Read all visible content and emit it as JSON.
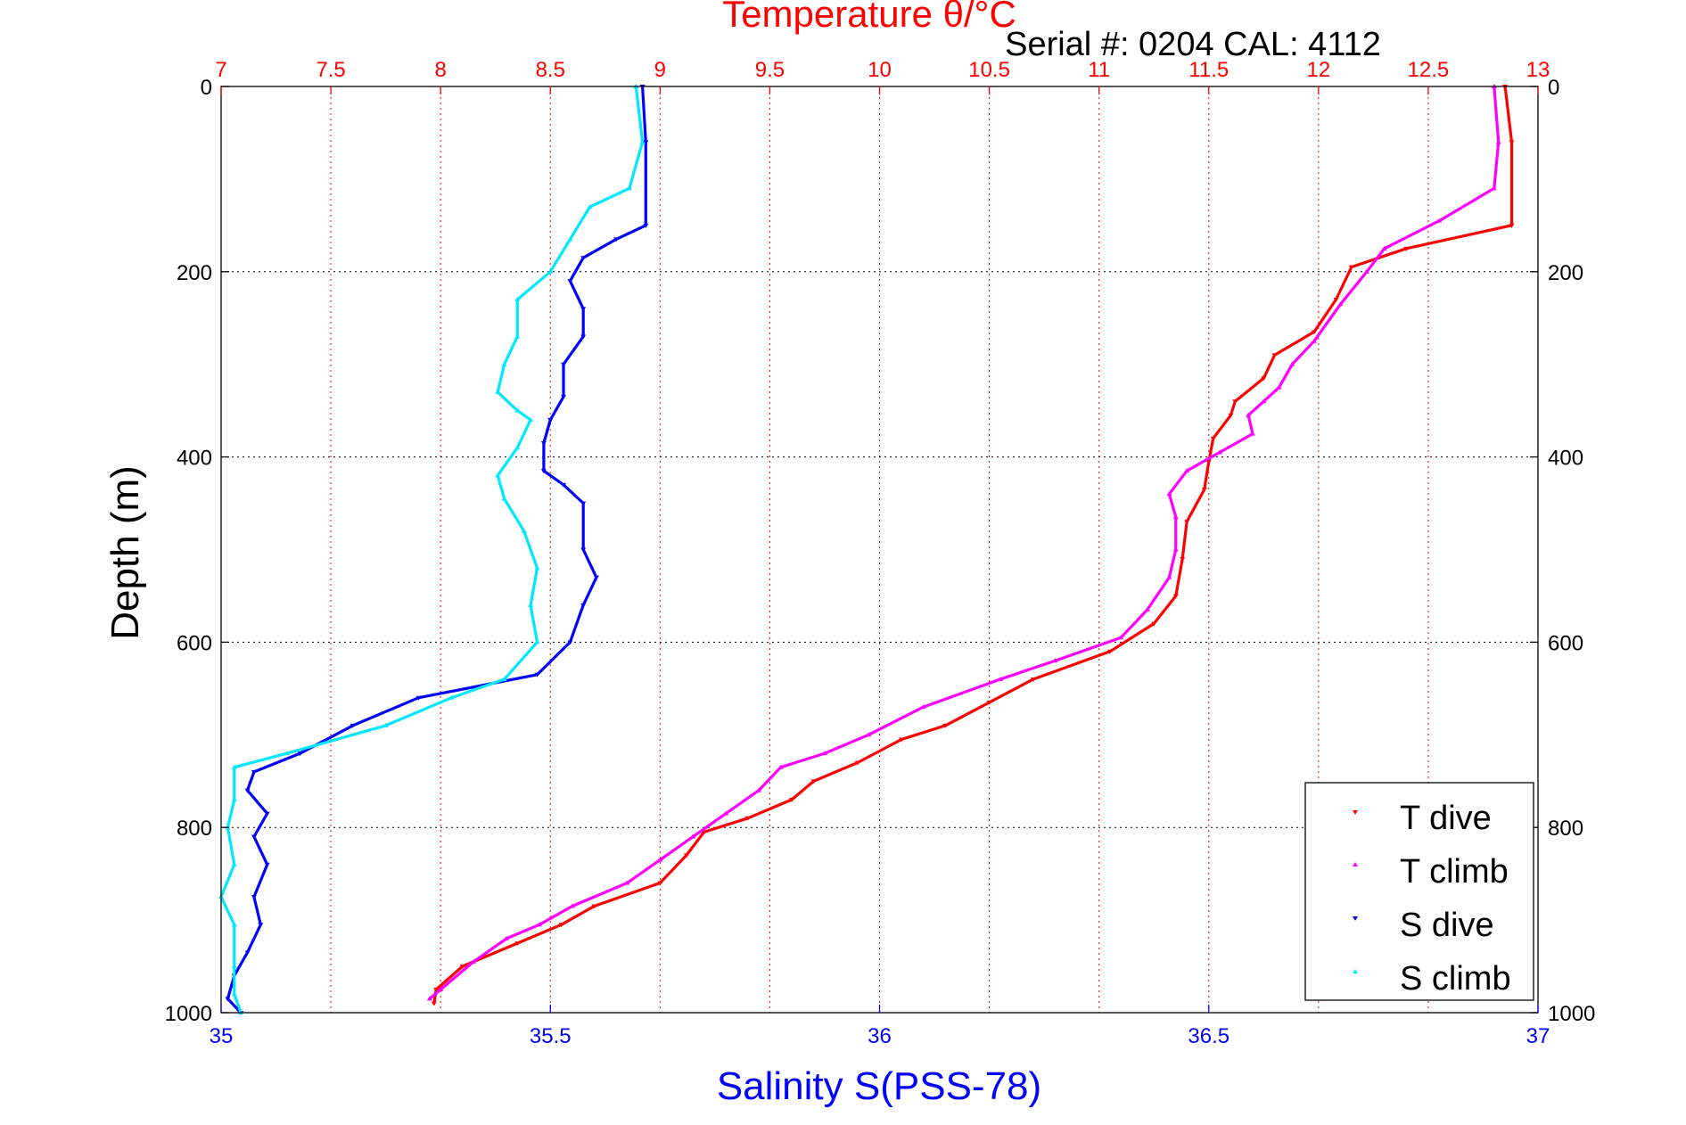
{
  "chart_data": {
    "type": "scatter",
    "title": "Temperature θ/°C",
    "subtitle": "Serial #: 0204  CAL: 4112",
    "xlabel_bottom": "Salinity S(PSS-78)",
    "xlabel_top": "Temperature θ/°C",
    "ylabel": "Depth (m)",
    "x_bottom": {
      "range": [
        35,
        37
      ],
      "ticks": [
        35,
        35.5,
        36,
        36.5,
        37
      ],
      "tick_labels": [
        "35",
        "35.5",
        "36",
        "36.5",
        "37"
      ],
      "color": "#0000ff"
    },
    "x_top": {
      "range": [
        7,
        13
      ],
      "ticks": [
        7,
        7.5,
        8,
        8.5,
        9,
        9.5,
        10,
        10.5,
        11,
        11.5,
        12,
        12.5,
        13
      ],
      "tick_labels": [
        "7",
        "7.5",
        "8",
        "8.5",
        "9",
        "9.5",
        "10",
        "10.5",
        "11",
        "11.5",
        "12",
        "12.5",
        "13"
      ],
      "color": "#ff0000"
    },
    "y": {
      "range": [
        0,
        1000
      ],
      "reversed": true,
      "ticks": [
        0,
        200,
        400,
        600,
        800,
        1000
      ],
      "tick_labels": [
        "0",
        "200",
        "400",
        "600",
        "800",
        "1000"
      ]
    },
    "grid": true,
    "legend_position": "bottom-right",
    "series": [
      {
        "name": "T dive",
        "axis": "top",
        "color": "#ff0000",
        "marker": "triangle-down",
        "points": [
          [
            12.85,
            0
          ],
          [
            12.88,
            60
          ],
          [
            12.88,
            150
          ],
          [
            12.4,
            175
          ],
          [
            12.15,
            195
          ],
          [
            12.08,
            230
          ],
          [
            11.98,
            265
          ],
          [
            11.8,
            290
          ],
          [
            11.75,
            315
          ],
          [
            11.62,
            340
          ],
          [
            11.6,
            355
          ],
          [
            11.52,
            380
          ],
          [
            11.5,
            405
          ],
          [
            11.48,
            435
          ],
          [
            11.4,
            470
          ],
          [
            11.38,
            510
          ],
          [
            11.35,
            550
          ],
          [
            11.25,
            580
          ],
          [
            11.05,
            610
          ],
          [
            10.7,
            640
          ],
          [
            10.5,
            665
          ],
          [
            10.3,
            690
          ],
          [
            10.1,
            705
          ],
          [
            9.9,
            730
          ],
          [
            9.7,
            750
          ],
          [
            9.6,
            770
          ],
          [
            9.4,
            790
          ],
          [
            9.2,
            805
          ],
          [
            9.12,
            830
          ],
          [
            9.0,
            860
          ],
          [
            8.7,
            885
          ],
          [
            8.55,
            905
          ],
          [
            8.35,
            925
          ],
          [
            8.1,
            950
          ],
          [
            7.98,
            975
          ],
          [
            7.97,
            990
          ]
        ]
      },
      {
        "name": "T climb",
        "axis": "top",
        "color": "#ff00ff",
        "marker": "triangle-up",
        "points": [
          [
            12.8,
            0
          ],
          [
            12.82,
            60
          ],
          [
            12.8,
            110
          ],
          [
            12.55,
            145
          ],
          [
            12.3,
            175
          ],
          [
            12.22,
            200
          ],
          [
            12.1,
            235
          ],
          [
            11.98,
            275
          ],
          [
            11.88,
            300
          ],
          [
            11.82,
            325
          ],
          [
            11.75,
            340
          ],
          [
            11.68,
            355
          ],
          [
            11.7,
            375
          ],
          [
            11.55,
            395
          ],
          [
            11.4,
            415
          ],
          [
            11.32,
            440
          ],
          [
            11.35,
            465
          ],
          [
            11.35,
            500
          ],
          [
            11.32,
            530
          ],
          [
            11.22,
            565
          ],
          [
            11.1,
            595
          ],
          [
            10.8,
            620
          ],
          [
            10.55,
            640
          ],
          [
            10.2,
            670
          ],
          [
            9.95,
            700
          ],
          [
            9.75,
            720
          ],
          [
            9.55,
            735
          ],
          [
            9.45,
            760
          ],
          [
            9.3,
            785
          ],
          [
            9.15,
            810
          ],
          [
            9.0,
            835
          ],
          [
            8.85,
            860
          ],
          [
            8.6,
            885
          ],
          [
            8.45,
            905
          ],
          [
            8.3,
            920
          ],
          [
            8.15,
            945
          ],
          [
            8.0,
            975
          ],
          [
            7.95,
            985
          ]
        ]
      },
      {
        "name": "S dive",
        "axis": "bottom",
        "color": "#0000ff",
        "marker": "triangle-down",
        "points": [
          [
            35.64,
            0
          ],
          [
            35.645,
            60
          ],
          [
            35.645,
            150
          ],
          [
            35.6,
            165
          ],
          [
            35.55,
            185
          ],
          [
            35.53,
            210
          ],
          [
            35.55,
            240
          ],
          [
            35.55,
            270
          ],
          [
            35.52,
            300
          ],
          [
            35.52,
            335
          ],
          [
            35.5,
            360
          ],
          [
            35.49,
            385
          ],
          [
            35.49,
            415
          ],
          [
            35.52,
            430
          ],
          [
            35.55,
            450
          ],
          [
            35.55,
            500
          ],
          [
            35.57,
            530
          ],
          [
            35.55,
            560
          ],
          [
            35.53,
            600
          ],
          [
            35.48,
            635
          ],
          [
            35.3,
            660
          ],
          [
            35.2,
            690
          ],
          [
            35.12,
            720
          ],
          [
            35.05,
            740
          ],
          [
            35.04,
            760
          ],
          [
            35.07,
            785
          ],
          [
            35.05,
            810
          ],
          [
            35.07,
            840
          ],
          [
            35.05,
            875
          ],
          [
            35.06,
            905
          ],
          [
            35.04,
            935
          ],
          [
            35.02,
            960
          ],
          [
            35.01,
            985
          ],
          [
            35.03,
            1000
          ]
        ]
      },
      {
        "name": "S climb",
        "axis": "bottom",
        "color": "#00e8ff",
        "marker": "triangle-up",
        "points": [
          [
            35.63,
            0
          ],
          [
            35.64,
            60
          ],
          [
            35.62,
            110
          ],
          [
            35.56,
            130
          ],
          [
            35.53,
            165
          ],
          [
            35.5,
            200
          ],
          [
            35.45,
            230
          ],
          [
            35.45,
            270
          ],
          [
            35.43,
            300
          ],
          [
            35.42,
            330
          ],
          [
            35.45,
            350
          ],
          [
            35.47,
            360
          ],
          [
            35.45,
            390
          ],
          [
            35.42,
            420
          ],
          [
            35.43,
            445
          ],
          [
            35.46,
            480
          ],
          [
            35.48,
            520
          ],
          [
            35.47,
            560
          ],
          [
            35.48,
            600
          ],
          [
            35.43,
            640
          ],
          [
            35.35,
            660
          ],
          [
            35.25,
            690
          ],
          [
            35.1,
            720
          ],
          [
            35.02,
            735
          ],
          [
            35.02,
            770
          ],
          [
            35.01,
            800
          ],
          [
            35.02,
            840
          ],
          [
            35.0,
            875
          ],
          [
            35.02,
            905
          ],
          [
            35.02,
            950
          ],
          [
            35.02,
            980
          ],
          [
            35.03,
            1000
          ]
        ]
      }
    ],
    "legend": [
      "T dive",
      "T climb",
      "S dive",
      "S climb"
    ]
  }
}
